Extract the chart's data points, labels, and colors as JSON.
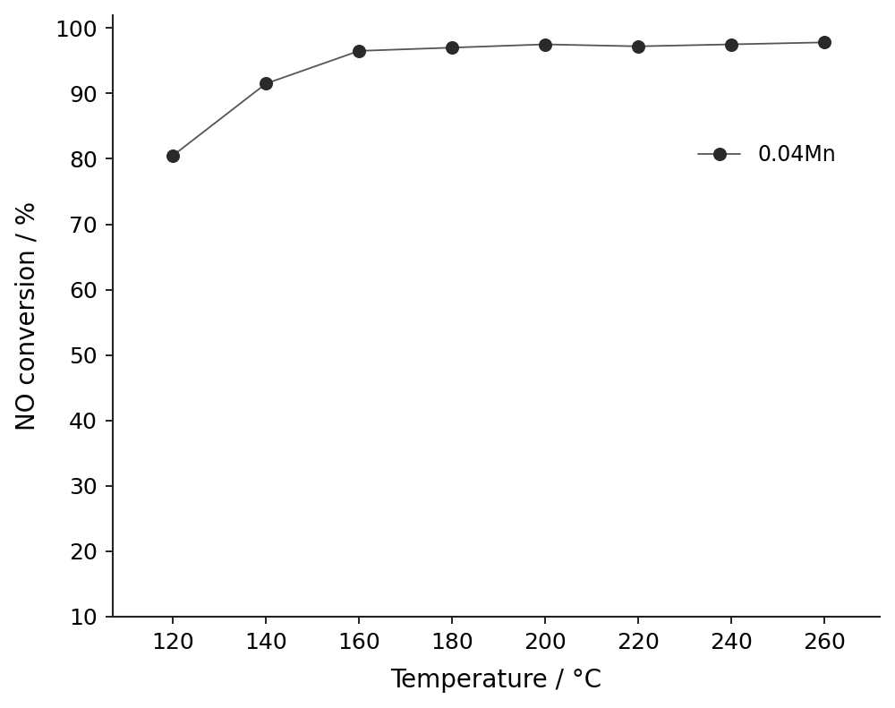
{
  "x": [
    120,
    140,
    160,
    180,
    200,
    220,
    240,
    260
  ],
  "y": [
    80.5,
    91.5,
    96.5,
    97.0,
    97.5,
    97.2,
    97.5,
    97.8
  ],
  "xlabel": "Temperature / °C",
  "ylabel": "NO conversion / %",
  "legend_label": "0.04Mn",
  "xlim": [
    107,
    272
  ],
  "ylim": [
    10,
    102
  ],
  "xticks": [
    120,
    140,
    160,
    180,
    200,
    220,
    240,
    260
  ],
  "yticks": [
    10,
    20,
    30,
    40,
    50,
    60,
    70,
    80,
    90,
    100
  ],
  "line_color": "#555555",
  "marker_color": "#2a2a2a",
  "marker_face_color": "#2a2a2a",
  "background_color": "#ffffff",
  "marker_size": 10,
  "line_width": 1.3,
  "label_fontsize": 20,
  "tick_fontsize": 18,
  "legend_fontsize": 17
}
